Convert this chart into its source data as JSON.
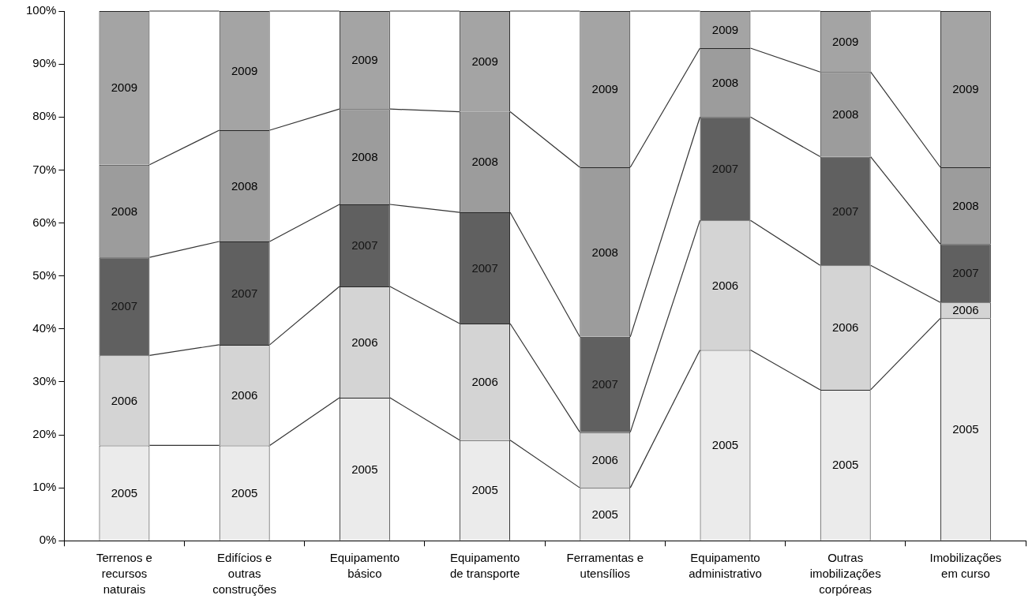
{
  "chart_data": {
    "type": "bar",
    "stacked": true,
    "categories": [
      "Terrenos e recursos naturais",
      "Edifícios e outras construções",
      "Equipamento básico",
      "Equipamento de transporte",
      "Ferramentas e utensílios",
      "Equipamento administrativo",
      "Outras imobilizações corpóreas",
      "Imobilizações em curso"
    ],
    "series": [
      {
        "name": "2005",
        "color": "#ebebeb",
        "values": [
          18,
          18,
          27,
          19,
          10,
          36,
          28.5,
          42
        ]
      },
      {
        "name": "2006",
        "color": "#d4d4d4",
        "values": [
          17,
          19,
          21,
          22,
          10.5,
          24.5,
          23.5,
          3
        ]
      },
      {
        "name": "2007",
        "color": "#606060",
        "values": [
          18.5,
          19.5,
          15.5,
          21,
          18,
          19.5,
          20.5,
          11
        ]
      },
      {
        "name": "2008",
        "color": "#9c9c9c",
        "values": [
          17.5,
          21,
          18,
          19,
          32,
          13,
          16,
          14.5
        ]
      },
      {
        "name": "2009",
        "color": "#a4a4a4",
        "values": [
          29,
          22.5,
          18.5,
          19,
          29.5,
          7,
          11.5,
          29.5
        ]
      }
    ],
    "ylim": [
      0,
      100
    ],
    "yticks": [
      {
        "value": 0,
        "label": "0%"
      },
      {
        "value": 10,
        "label": "10%"
      },
      {
        "value": 20,
        "label": "20%"
      },
      {
        "value": 30,
        "label": "30%"
      },
      {
        "value": 40,
        "label": "40%"
      },
      {
        "value": 50,
        "label": "50%"
      },
      {
        "value": 60,
        "label": "60%"
      },
      {
        "value": 70,
        "label": "70%"
      },
      {
        "value": 80,
        "label": "80%"
      },
      {
        "value": 90,
        "label": "90%"
      },
      {
        "value": 100,
        "label": "100%"
      }
    ]
  }
}
